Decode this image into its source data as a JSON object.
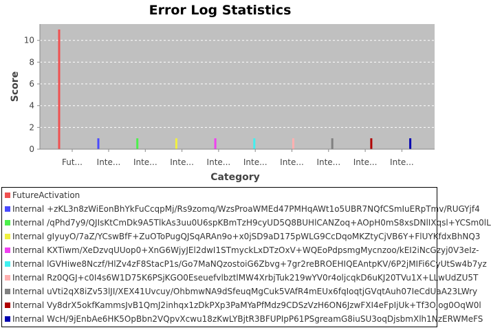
{
  "chart_data": {
    "type": "bar",
    "title": "Error Log Statistics",
    "xlabel": "Category",
    "ylabel": "Score",
    "ylim": [
      0,
      11.5
    ],
    "yticks": [
      0,
      2,
      4,
      6,
      8,
      10
    ],
    "grid": true,
    "legend_position": "bottom",
    "categories": [
      "Fut...",
      "Inte...",
      "Inte...",
      "Inte...",
      "Inte...",
      "Inte...",
      "Inte...",
      "Inte...",
      "Inte...",
      "Inte..."
    ],
    "series": [
      {
        "name": "FutureActivation",
        "color": "#f05050",
        "value": 11
      },
      {
        "name": "Internal +zKL3n8zWiEonBhYkFuCcqpMj/Rs9zomq/WzsProaWMEd47PMHqAWt1o5UBR7NQfCSmIuERpTmv/RUGYjf4",
        "color": "#4a4aff",
        "value": 1
      },
      {
        "name": "Internal /qPhd7y9/QJIsKtCmDk9A5TlkAs3uu0U6spKBmTzH9cyUD5Q8BUHlCANZoq+AOpH0mS8xsDNlIXqsl+YCSm0lL",
        "color": "#4cf04c",
        "value": 1
      },
      {
        "name": "Internal gIyuyO/7aZ/YCswBfF+ZuOToPugQJSqARAn9o+x0jSD9aD175pWLG9CcDqoMKZtyCjVB6Y+FlUYKfdxBhNQ3",
        "color": "#f0f040",
        "value": 1
      },
      {
        "name": "Internal KXTiwm/XeDzvqUUop0+XnG6WjyJEl2dwI1STmyckLxDTzOxV+WQEoPdpsmgMycnzoo/kEI2iNcGzyj0V3eIz-",
        "color": "#f040f0",
        "value": 1
      },
      {
        "name": "Internal lGVHiwe8Nczf/HlZv4zF8StacP1s/Go7MaNQzostoiG6Zbvg+7gr2reBROEHIQEAntpKV/6P2jMIFi6CyUtSw4b7yz",
        "color": "#40f0f0",
        "value": 1
      },
      {
        "name": "Internal Rz0QGJ+c0I4s6W1D75K6PSjKGO0EseuefvlbztlMW4XrbjTuk219wYV0r4oljcqkD6uKJ20TVu1X+LLwUdZU5T",
        "color": "#ffb0b0",
        "value": 1
      },
      {
        "name": "Internal uVti2qX8iZv53lJI/XEX41Uvcuy/OhbmwNA9dSfeuqMgCuk5VAfR4mEUx6fqIoqtjGVqtAuh07IeCdUaA23LWry",
        "color": "#808080",
        "value": 1
      },
      {
        "name": "Internal Vy8drX5okfKammsJvB1QmJ2inhqx1zDkPXp3PaMYaPfMdz9CDSzVzH6ON6JzwFXI4eFpIjUk+Tf3Ojog0OqW0l",
        "color": "#b00000",
        "value": 1
      },
      {
        "name": "Internal WcH/9jEnbAe6HK5OpBbn2VQpvXcwu18zKwLYBjtR3BFUPIpP61PSgreamG8iuSU3oqDjsbmXlh1NzERWMeFS",
        "color": "#0000b0",
        "value": 1
      }
    ]
  }
}
